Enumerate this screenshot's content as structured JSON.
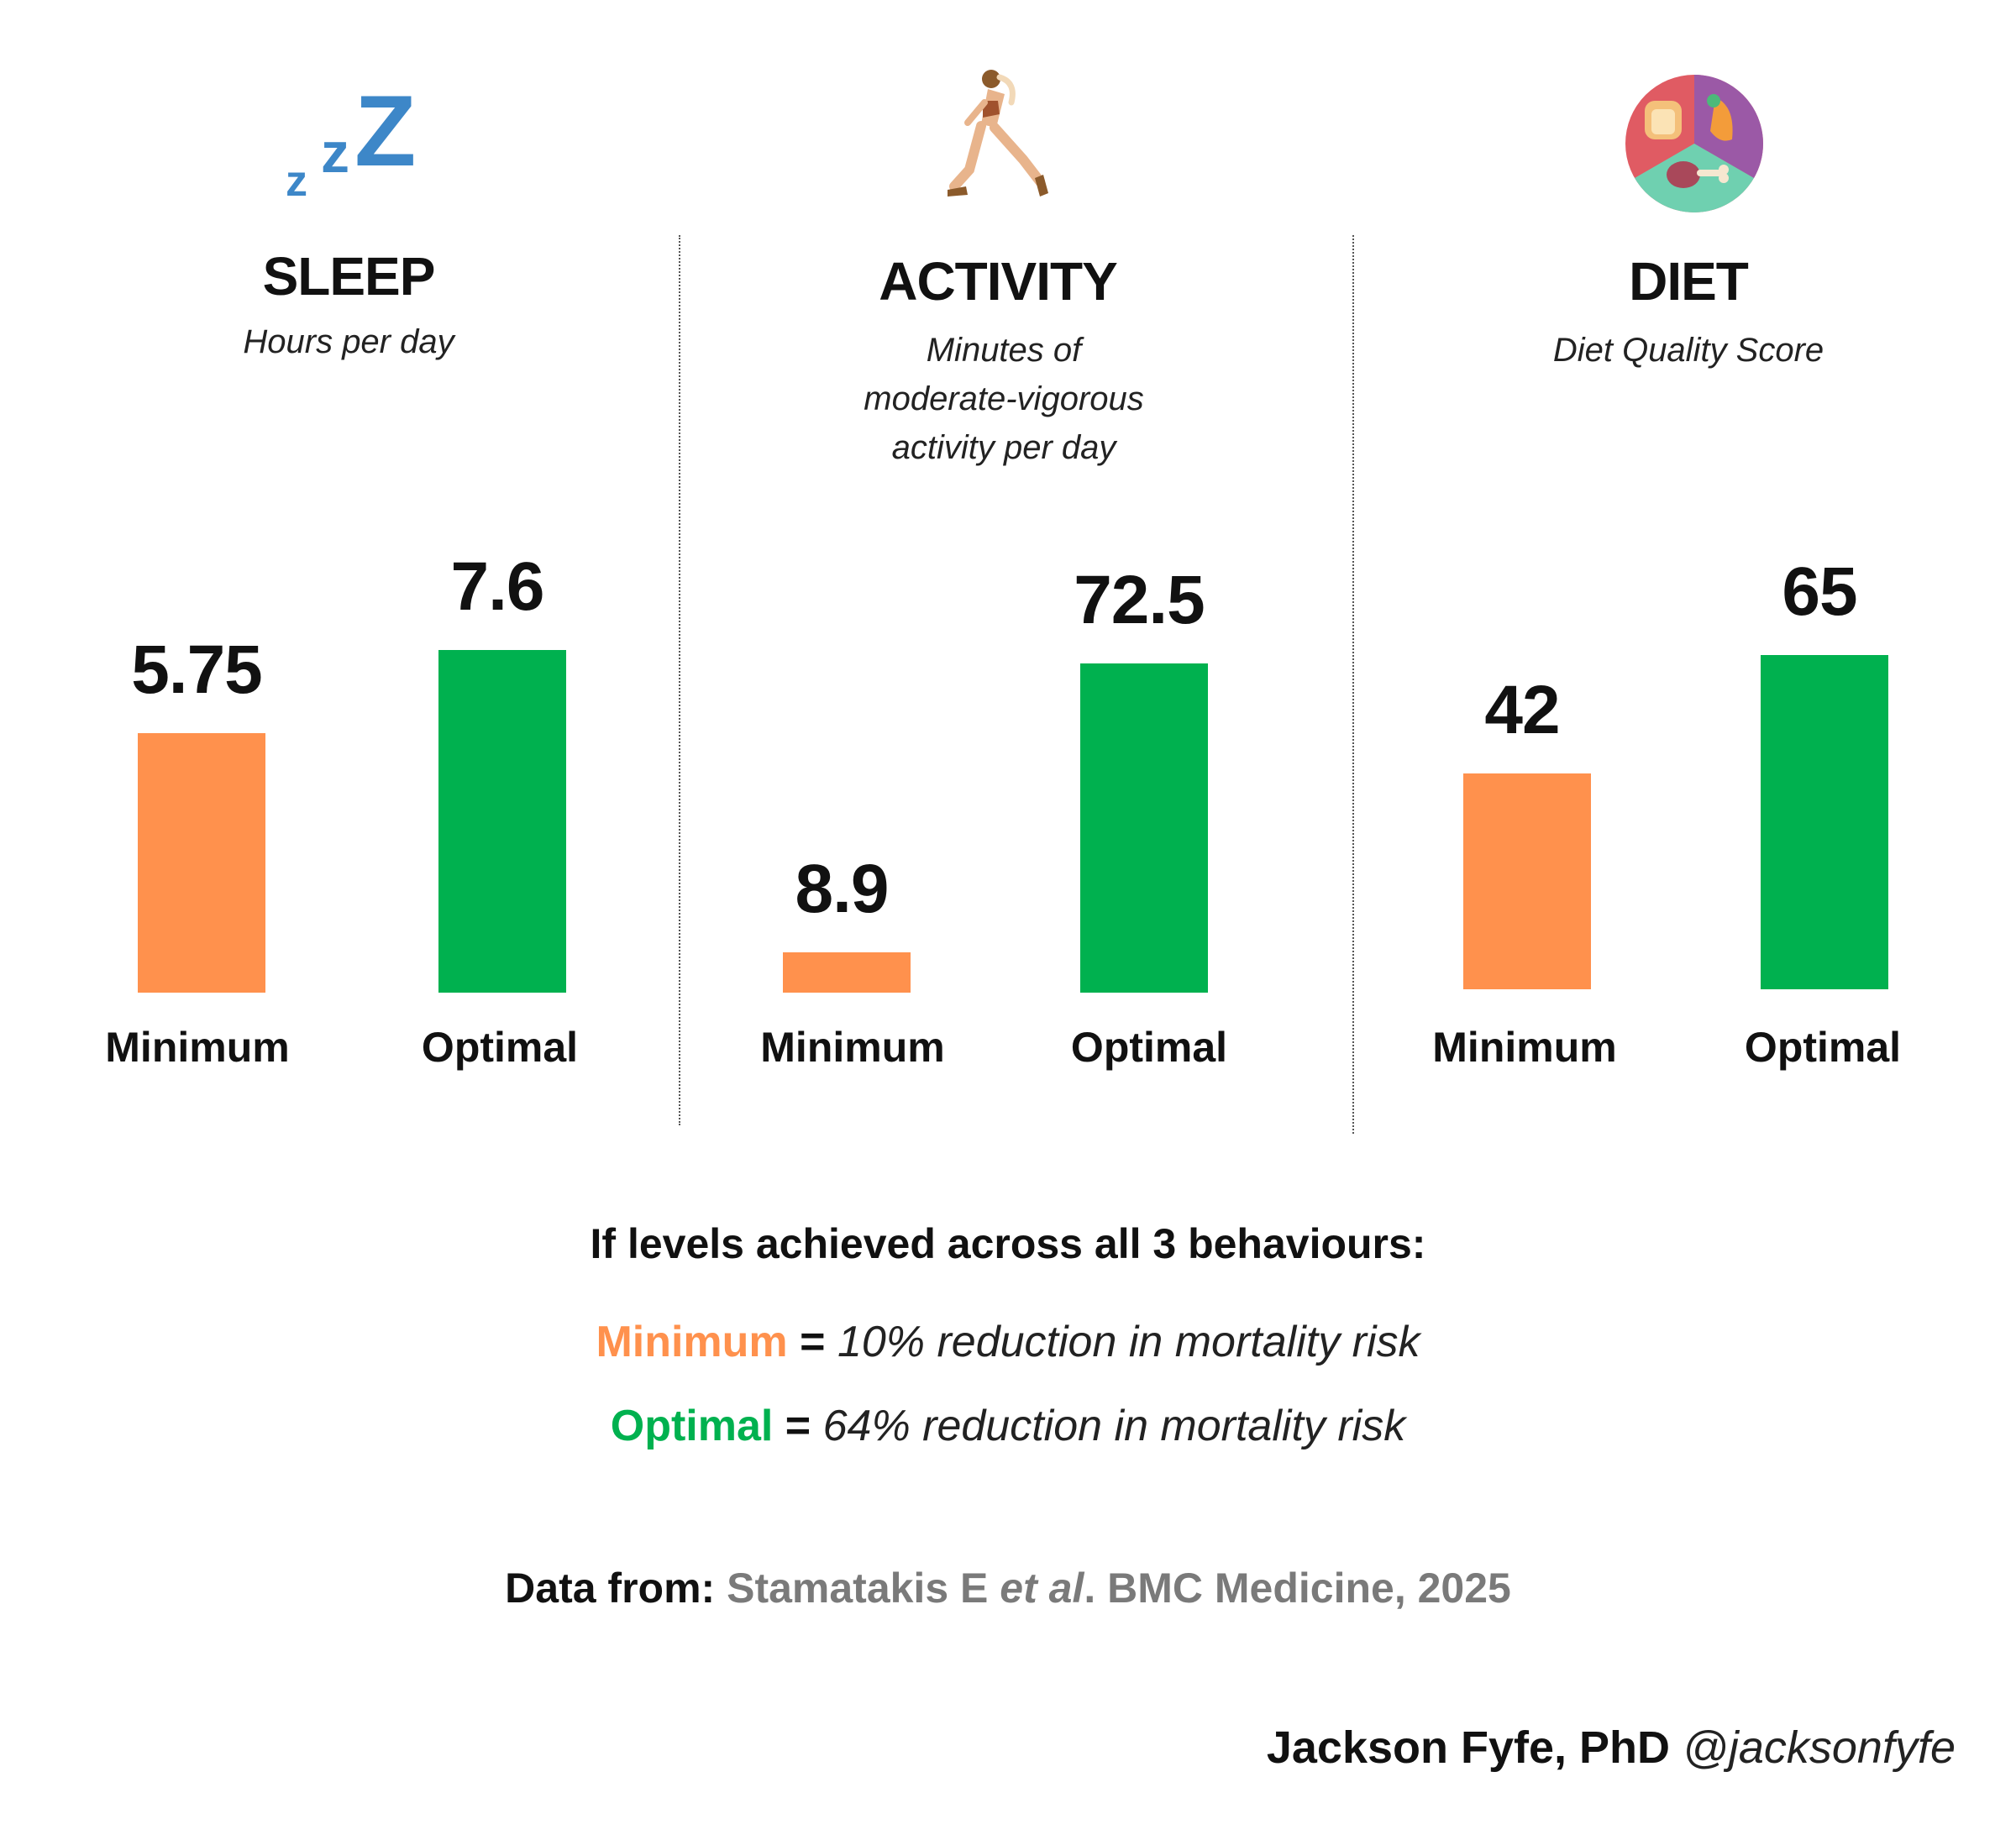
{
  "colors": {
    "minimum": "#FF914D",
    "optimal": "#00B14F"
  },
  "chart_data": [
    {
      "type": "bar",
      "title": "SLEEP",
      "subtitle": "Hours per day",
      "icon": "zzz-sleep-icon",
      "categories": [
        "Minimum",
        "Optimal"
      ],
      "values": [
        5.75,
        7.6
      ],
      "value_labels": [
        "5.75",
        "7.6"
      ]
    },
    {
      "type": "bar",
      "title": "ACTIVITY",
      "subtitle": "Minutes of moderate-vigorous activity per day",
      "subtitle_lines": [
        "Minutes of",
        "moderate-vigorous",
        "activity per day"
      ],
      "icon": "runner-icon",
      "categories": [
        "Minimum",
        "Optimal"
      ],
      "values": [
        8.9,
        72.5
      ],
      "value_labels": [
        "8.9",
        "72.5"
      ]
    },
    {
      "type": "bar",
      "title": "DIET",
      "subtitle": "Diet Quality Score",
      "icon": "food-plate-icon",
      "categories": [
        "Minimum",
        "Optimal"
      ],
      "values": [
        42,
        65
      ],
      "value_labels": [
        "42",
        "65"
      ]
    }
  ],
  "summary": {
    "heading": "If levels achieved across all 3 behaviours:",
    "minimum": {
      "label": "Minimum",
      "eq": "=",
      "text": "10% reduction in mortality risk"
    },
    "optimal": {
      "label": "Optimal",
      "eq": "=",
      "text": "64% reduction in mortality risk"
    }
  },
  "source": {
    "prefix": "Data from:",
    "author": "Stamatakis E",
    "etal": "et al",
    "rest": ". BMC Medicine, 2025"
  },
  "credit": {
    "name": "Jackson Fyfe, PhD",
    "handle": "@jacksonfyfe"
  }
}
